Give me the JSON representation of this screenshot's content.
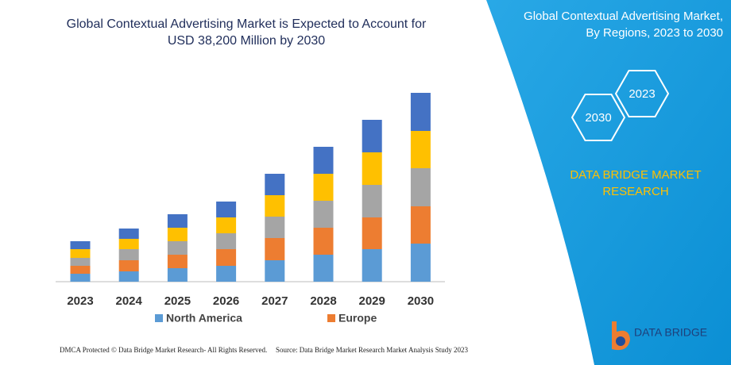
{
  "chart_data": {
    "type": "stacked-bar",
    "title": "Global Contextual Advertising Market is Expected to Account for USD 38,200 Million by 2030",
    "categories": [
      "2023",
      "2024",
      "2025",
      "2026",
      "2027",
      "2028",
      "2029",
      "2030"
    ],
    "series": [
      {
        "name": "North America",
        "color": "#5b9bd5",
        "values": [
          10,
          13,
          17,
          20,
          27,
          34,
          41,
          48
        ]
      },
      {
        "name": "Europe",
        "color": "#ed7d31",
        "values": [
          10,
          14,
          17,
          21,
          28,
          34,
          40,
          47
        ]
      },
      {
        "color": "#a5a5a5",
        "values": [
          10,
          14,
          17,
          20,
          27,
          34,
          41,
          48
        ]
      },
      {
        "color": "#ffc000",
        "values": [
          11,
          13,
          17,
          20,
          27,
          34,
          41,
          47
        ]
      },
      {
        "color": "#4472c4",
        "values": [
          10,
          13,
          17,
          20,
          27,
          34,
          41,
          48
        ]
      }
    ]
  },
  "panel": {
    "title": "Global Contextual Advertising Market, By Regions, 2023 to 2030",
    "hex_top": "2023",
    "hex_bottom": "2030",
    "brand": "DATA BRIDGE MARKET RESEARCH"
  },
  "logo": {
    "text": "DATA BRIDGE"
  },
  "footer": {
    "left": "DMCA Protected © Data Bridge Market Research-  All Rights Reserved.",
    "right": "Source: Data Bridge Market Research  Market Analysis Study 2023"
  }
}
